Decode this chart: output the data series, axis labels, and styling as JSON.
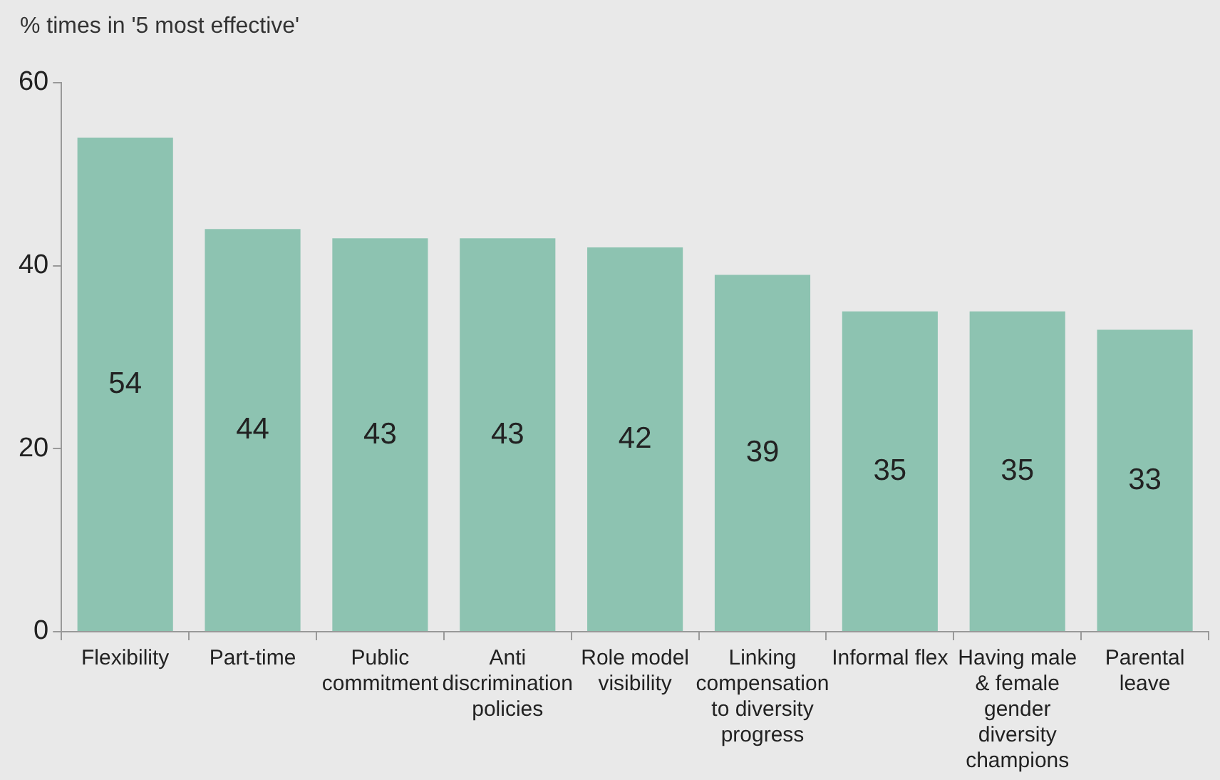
{
  "chart_data": {
    "type": "bar",
    "ylabel": "% times in '5 most effective'",
    "categories": [
      "Flexibility",
      "Part-time",
      "Public commitment",
      "Anti discrimination policies",
      "Role model visibility",
      "Linking compensation to diversity progress",
      "Informal flex",
      "Having male & female gender diversity champions",
      "Parental leave"
    ],
    "values": [
      54,
      44,
      43,
      43,
      42,
      39,
      35,
      35,
      33
    ],
    "color": "#8dc3b1",
    "ylim": [
      0,
      60
    ],
    "yticks": [
      0,
      20,
      40,
      60
    ],
    "grid": false,
    "legend": false,
    "data_labels": true
  }
}
